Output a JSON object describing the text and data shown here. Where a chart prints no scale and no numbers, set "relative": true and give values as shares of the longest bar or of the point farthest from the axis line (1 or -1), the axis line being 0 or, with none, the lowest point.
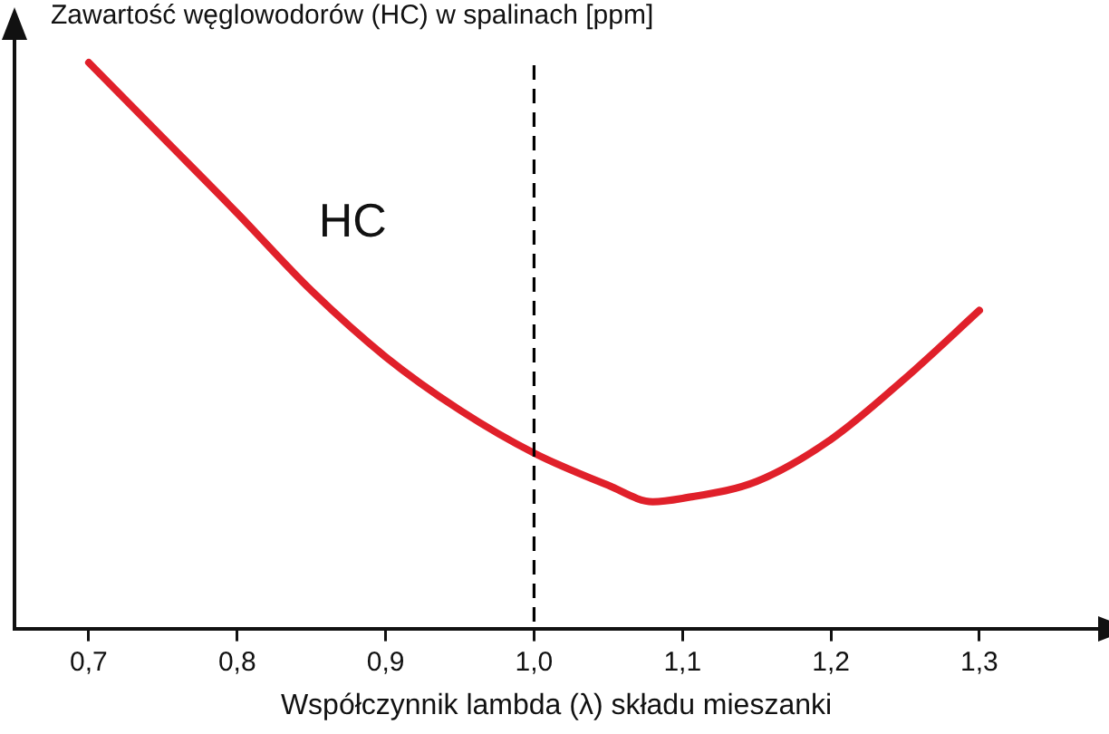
{
  "chart_data": {
    "type": "line",
    "ylabel": "Zawartość węglowodorów (HC) w spalinach [ppm]",
    "xlabel": "Współczynnik lambda (λ) składu mieszanki",
    "relative": true,
    "xlim": [
      0.65,
      1.38
    ],
    "xticks": [
      {
        "value": 0.7,
        "label": "0,7"
      },
      {
        "value": 0.8,
        "label": "0,8"
      },
      {
        "value": 0.9,
        "label": "0,9"
      },
      {
        "value": 1.0,
        "label": "1,0"
      },
      {
        "value": 1.1,
        "label": "1,1"
      },
      {
        "value": 1.2,
        "label": "1,2"
      },
      {
        "value": 1.3,
        "label": "1,3"
      }
    ],
    "x": [
      0.7,
      0.75,
      0.8,
      0.85,
      0.9,
      0.95,
      1.0,
      1.05,
      1.08,
      1.1,
      1.15,
      1.2,
      1.25,
      1.3
    ],
    "series": [
      {
        "name": "HC",
        "color": "#e0202a",
        "values": [
          1.0,
          0.867,
          0.734,
          0.597,
          0.48,
          0.386,
          0.31,
          0.253,
          0.224,
          0.23,
          0.26,
          0.334,
          0.442,
          0.562
        ]
      }
    ],
    "ref_lines": [
      {
        "axis": "x",
        "value": 1.0,
        "color": "#000000",
        "line_style": "dashed"
      }
    ],
    "grid": false,
    "legend": false,
    "marker": "none",
    "line_style": "solid"
  }
}
